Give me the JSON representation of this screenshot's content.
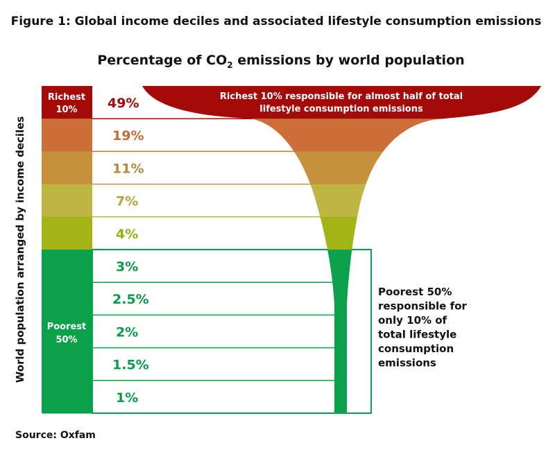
{
  "figure_title": "Figure 1: Global income deciles and associated lifestyle consumption emissions",
  "chart_data": {
    "type": "bar",
    "title_parts": {
      "before": "Percentage of CO",
      "subscript": "2",
      "after": " emissions by world population"
    },
    "ylabel": "World population arranged by income deciles",
    "categories_top_to_bottom": [
      "Richest 10%",
      "",
      "",
      "",
      "",
      "",
      "",
      "",
      "",
      ""
    ],
    "values": [
      49,
      19,
      11,
      7,
      4,
      3,
      2.5,
      2,
      1.5,
      1
    ],
    "value_labels": [
      "49%",
      "19%",
      "11%",
      "7%",
      "4%",
      "3%",
      "2.5%",
      "2%",
      "1.5%",
      "1%"
    ],
    "group_labels": {
      "richest": "Richest 10%",
      "poorest": "Poorest 50%"
    },
    "annotations": {
      "richest": [
        "Richest 10% responsible for almost half of total",
        "lifestyle consumption emissions"
      ],
      "poorest": [
        "Poorest 50%",
        "responsible for",
        "only 10% of",
        "total lifestyle",
        "consumption",
        "emissions"
      ]
    },
    "colors": [
      "#a30b0b",
      "#cd6f38",
      "#c6903d",
      "#beb543",
      "#a3b514",
      "#0aa14a",
      "#0aa14a",
      "#0aa14a",
      "#0aa14a",
      "#0aa14a"
    ],
    "text_colors": [
      "#a30b0b",
      "#c46a36",
      "#b3883a",
      "#b3a53a",
      "#98ad12",
      "#0a9a48",
      "#0a9a48",
      "#0a9a48",
      "#0a9a48",
      "#0a9a48"
    ]
  },
  "source": "Source: Oxfam"
}
